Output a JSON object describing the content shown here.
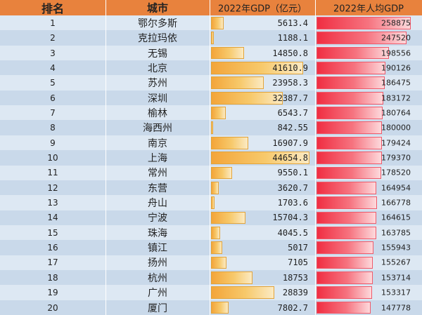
{
  "header": {
    "rank": "排名",
    "city": "城市",
    "gdp": "2022年GDP（亿元）",
    "gdp_per_capita": "2022年人均GDP"
  },
  "colors": {
    "header_bg": "#e8823d",
    "row_light": "#dde8f3",
    "row_dark": "#c9d9ea",
    "gdp_bar": "#f3a53a",
    "per_capita_bar": "#f02e42"
  },
  "gdp_bar_max": 44654.8,
  "per_capita_bar_range": [
    0,
    258875
  ],
  "rows": [
    {
      "rank": "1",
      "city": "鄂尔多斯",
      "gdp": "5613.4",
      "gdp_value": 5613.4,
      "per_capita": "258875",
      "per_capita_value": 258875
    },
    {
      "rank": "2",
      "city": "克拉玛依",
      "gdp": "1188.1",
      "gdp_value": 1188.1,
      "per_capita": "247520",
      "per_capita_value": 247520
    },
    {
      "rank": "3",
      "city": "无锡",
      "gdp": "14850.8",
      "gdp_value": 14850.8,
      "per_capita": "198556",
      "per_capita_value": 198556
    },
    {
      "rank": "4",
      "city": "北京",
      "gdp": "41610.9",
      "gdp_value": 41610.9,
      "per_capita": "190126",
      "per_capita_value": 190126
    },
    {
      "rank": "5",
      "city": "苏州",
      "gdp": "23958.3",
      "gdp_value": 23958.3,
      "per_capita": "186475",
      "per_capita_value": 186475
    },
    {
      "rank": "6",
      "city": "深圳",
      "gdp": "32387.7",
      "gdp_value": 32387.7,
      "per_capita": "183172",
      "per_capita_value": 183172
    },
    {
      "rank": "7",
      "city": "榆林",
      "gdp": "6543.7",
      "gdp_value": 6543.7,
      "per_capita": "180764",
      "per_capita_value": 180764
    },
    {
      "rank": "8",
      "city": "海西州",
      "gdp": "842.55",
      "gdp_value": 842.55,
      "per_capita": "180000",
      "per_capita_value": 180000
    },
    {
      "rank": "9",
      "city": "南京",
      "gdp": "16907.9",
      "gdp_value": 16907.9,
      "per_capita": "179424",
      "per_capita_value": 179424
    },
    {
      "rank": "10",
      "city": "上海",
      "gdp": "44654.8",
      "gdp_value": 44654.8,
      "per_capita": "179370",
      "per_capita_value": 179370
    },
    {
      "rank": "11",
      "city": "常州",
      "gdp": "9550.1",
      "gdp_value": 9550.1,
      "per_capita": "178520",
      "per_capita_value": 178520
    },
    {
      "rank": "12",
      "city": "东营",
      "gdp": "3620.7",
      "gdp_value": 3620.7,
      "per_capita": "164954",
      "per_capita_value": 164954
    },
    {
      "rank": "13",
      "city": "舟山",
      "gdp": "1703.6",
      "gdp_value": 1703.6,
      "per_capita": "166778",
      "per_capita_value": 166778
    },
    {
      "rank": "14",
      "city": "宁波",
      "gdp": "15704.3",
      "gdp_value": 15704.3,
      "per_capita": "164615",
      "per_capita_value": 164615
    },
    {
      "rank": "15",
      "city": "珠海",
      "gdp": "4045.5",
      "gdp_value": 4045.5,
      "per_capita": "163785",
      "per_capita_value": 163785
    },
    {
      "rank": "16",
      "city": "镇江",
      "gdp": "5017",
      "gdp_value": 5017,
      "per_capita": "155943",
      "per_capita_value": 155943
    },
    {
      "rank": "17",
      "city": "扬州",
      "gdp": "7105",
      "gdp_value": 7105,
      "per_capita": "155267",
      "per_capita_value": 155267
    },
    {
      "rank": "18",
      "city": "杭州",
      "gdp": "18753",
      "gdp_value": 18753,
      "per_capita": "153714",
      "per_capita_value": 153714
    },
    {
      "rank": "19",
      "city": "广州",
      "gdp": "28839",
      "gdp_value": 28839,
      "per_capita": "153317",
      "per_capita_value": 153317
    },
    {
      "rank": "20",
      "city": "厦门",
      "gdp": "7802.7",
      "gdp_value": 7802.7,
      "per_capita": "147778",
      "per_capita_value": 147778
    }
  ]
}
